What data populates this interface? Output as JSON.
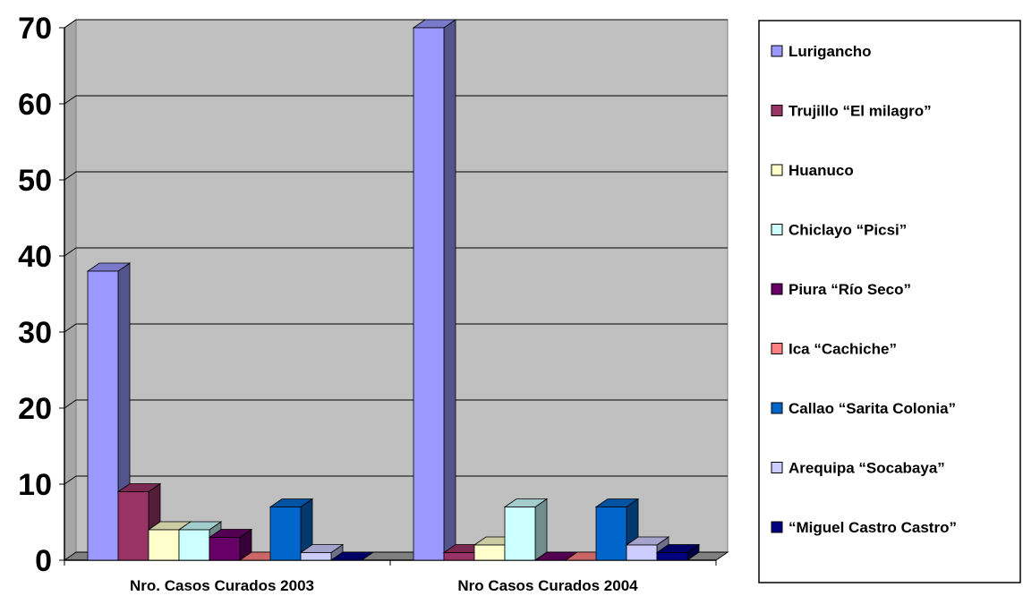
{
  "chart_data": {
    "type": "bar",
    "style": "3d-clustered-column",
    "categories": [
      "Nro. Casos Curados 2003",
      "Nro Casos Curados 2004"
    ],
    "series": [
      {
        "name": "Lurigancho",
        "values": [
          38,
          70
        ],
        "color": "#9999ff"
      },
      {
        "name": "Trujillo “El milagro”",
        "values": [
          9,
          1
        ],
        "color": "#993366"
      },
      {
        "name": "Huanuco",
        "values": [
          4,
          2
        ],
        "color": "#ffffcc"
      },
      {
        "name": "Chiclayo “Picsi”",
        "values": [
          4,
          7
        ],
        "color": "#ccffff"
      },
      {
        "name": "Piura “Río Seco”",
        "values": [
          3,
          0
        ],
        "color": "#660066"
      },
      {
        "name": "Ica “Cachiche”",
        "values": [
          0,
          0
        ],
        "color": "#ff8080"
      },
      {
        "name": "Callao “Sarita Colonia”",
        "values": [
          7,
          7
        ],
        "color": "#0066cc"
      },
      {
        "name": "Arequipa “Socabaya”",
        "values": [
          1,
          2
        ],
        "color": "#ccccff"
      },
      {
        "name": "“Miguel Castro Castro”",
        "values": [
          0,
          1
        ],
        "color": "#000080"
      }
    ],
    "yticks": [
      "0",
      "10",
      "20",
      "30",
      "40",
      "50",
      "60",
      "70"
    ],
    "ylim": [
      0,
      70
    ],
    "grid": true,
    "legend": "right",
    "wall_color": "#c0c0c0"
  }
}
